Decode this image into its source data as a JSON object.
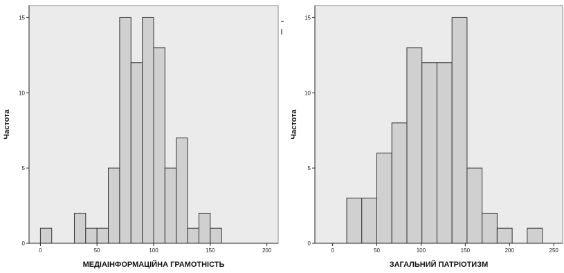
{
  "chart_data": [
    {
      "type": "bar",
      "xlabel": "МЕДІАІНФОРМАЦІЙНА ГРАМОТНІСТЬ",
      "ylabel": "Частота",
      "xlim": [
        -10,
        210
      ],
      "ylim": [
        0,
        15.8
      ],
      "x_ticks": [
        0,
        50,
        100,
        150,
        200
      ],
      "y_ticks": [
        0,
        5,
        10,
        15
      ],
      "bins": [
        {
          "start": 0,
          "end": 10,
          "value": 1
        },
        {
          "start": 30,
          "end": 40,
          "value": 2
        },
        {
          "start": 40,
          "end": 50,
          "value": 1
        },
        {
          "start": 50,
          "end": 60,
          "value": 1
        },
        {
          "start": 60,
          "end": 70,
          "value": 5
        },
        {
          "start": 70,
          "end": 80,
          "value": 15
        },
        {
          "start": 80,
          "end": 90,
          "value": 12
        },
        {
          "start": 90,
          "end": 100,
          "value": 15
        },
        {
          "start": 100,
          "end": 110,
          "value": 13
        },
        {
          "start": 110,
          "end": 120,
          "value": 5
        },
        {
          "start": 120,
          "end": 130,
          "value": 7
        },
        {
          "start": 130,
          "end": 140,
          "value": 1
        },
        {
          "start": 140,
          "end": 150,
          "value": 2
        },
        {
          "start": 150,
          "end": 160,
          "value": 1
        }
      ]
    },
    {
      "type": "bar",
      "xlabel": "ЗАГАЛЬНИЙ ПАТРІОТИЗМ",
      "ylabel": "Частота",
      "xlim": [
        -20,
        260
      ],
      "ylim": [
        0,
        15.8
      ],
      "x_ticks": [
        0,
        50,
        100,
        150,
        200,
        250
      ],
      "y_ticks": [
        0,
        5,
        10,
        15
      ],
      "bins": [
        {
          "start": 16,
          "end": 33,
          "value": 3
        },
        {
          "start": 33,
          "end": 50,
          "value": 3
        },
        {
          "start": 50,
          "end": 67,
          "value": 6
        },
        {
          "start": 67,
          "end": 84,
          "value": 8
        },
        {
          "start": 84,
          "end": 101,
          "value": 13
        },
        {
          "start": 101,
          "end": 118,
          "value": 12
        },
        {
          "start": 118,
          "end": 135,
          "value": 12
        },
        {
          "start": 135,
          "end": 152,
          "value": 15
        },
        {
          "start": 152,
          "end": 169,
          "value": 5
        },
        {
          "start": 169,
          "end": 186,
          "value": 2
        },
        {
          "start": 186,
          "end": 203,
          "value": 1
        },
        {
          "start": 220,
          "end": 237,
          "value": 1
        }
      ]
    }
  ]
}
